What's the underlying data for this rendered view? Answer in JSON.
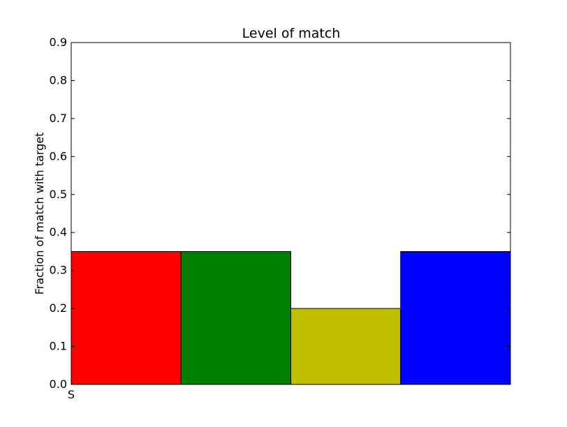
{
  "chart_data": {
    "type": "bar",
    "title": "Level of match",
    "xlabel": "",
    "ylabel": "Fraction of match with target",
    "ylim": [
      0,
      0.9
    ],
    "y_ticks": [
      0.0,
      0.1,
      0.2,
      0.3,
      0.4,
      0.5,
      0.6,
      0.7,
      0.8,
      0.9
    ],
    "x_tick_labels": [
      "S"
    ],
    "bars": [
      {
        "value": 0.35,
        "color": "#ff0000"
      },
      {
        "value": 0.35,
        "color": "#008000"
      },
      {
        "value": 0.2,
        "color": "#bfbf00"
      },
      {
        "value": 0.35,
        "color": "#0000ff"
      }
    ],
    "grid": false,
    "legend": "none"
  }
}
